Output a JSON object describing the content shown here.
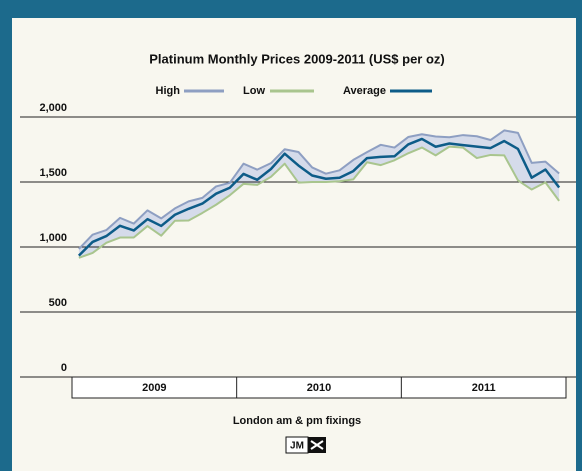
{
  "chart_data": {
    "type": "line",
    "title": "Platinum Monthly Prices 2009-2011 (US$ per oz)",
    "x_label": "London am & pm fixings",
    "logo": "JM",
    "year_labels": [
      "2009",
      "2010",
      "2011"
    ],
    "categories": [
      null,
      null,
      null,
      null,
      null,
      null,
      null,
      null,
      null,
      null,
      null,
      null,
      null,
      null,
      null,
      null,
      null,
      null,
      null,
      null,
      null,
      null,
      null,
      null,
      null,
      null,
      null,
      null,
      null,
      null,
      null,
      null,
      null,
      null,
      null,
      null
    ],
    "range_fill": "#d5dbea",
    "series": [
      {
        "name": "High",
        "color": "#8e9fc2",
        "values": [
          985,
          1095,
          1130,
          1224,
          1180,
          1282,
          1220,
          1297,
          1351,
          1378,
          1466,
          1494,
          1641,
          1595,
          1645,
          1752,
          1731,
          1612,
          1564,
          1590,
          1670,
          1730,
          1786,
          1765,
          1846,
          1867,
          1850,
          1844,
          1861,
          1852,
          1823,
          1897,
          1878,
          1647,
          1657,
          1565
        ]
      },
      {
        "name": "Low",
        "color": "#a9c58e",
        "values": [
          917,
          954,
          1032,
          1073,
          1073,
          1161,
          1087,
          1202,
          1204,
          1262,
          1325,
          1398,
          1486,
          1478,
          1540,
          1641,
          1495,
          1500,
          1500,
          1506,
          1520,
          1652,
          1630,
          1667,
          1721,
          1765,
          1705,
          1772,
          1764,
          1684,
          1708,
          1705,
          1512,
          1442,
          1497,
          1355
        ]
      },
      {
        "name": "Average",
        "color": "#0d5c88",
        "values": [
          934,
          1039,
          1084,
          1163,
          1127,
          1214,
          1162,
          1248,
          1294,
          1334,
          1410,
          1456,
          1562,
          1517,
          1600,
          1718,
          1627,
          1550,
          1525,
          1533,
          1584,
          1684,
          1693,
          1698,
          1789,
          1831,
          1771,
          1796,
          1784,
          1772,
          1761,
          1815,
          1754,
          1533,
          1596,
          1458
        ]
      }
    ],
    "ylim": [
      0,
      2000
    ],
    "yticks": [
      0,
      500,
      {
        "value": 1000,
        "label": "1,000"
      },
      {
        "value": 1500,
        "label": "1,500"
      },
      {
        "value": 2000,
        "label": "2,000"
      }
    ],
    "grid": true
  }
}
